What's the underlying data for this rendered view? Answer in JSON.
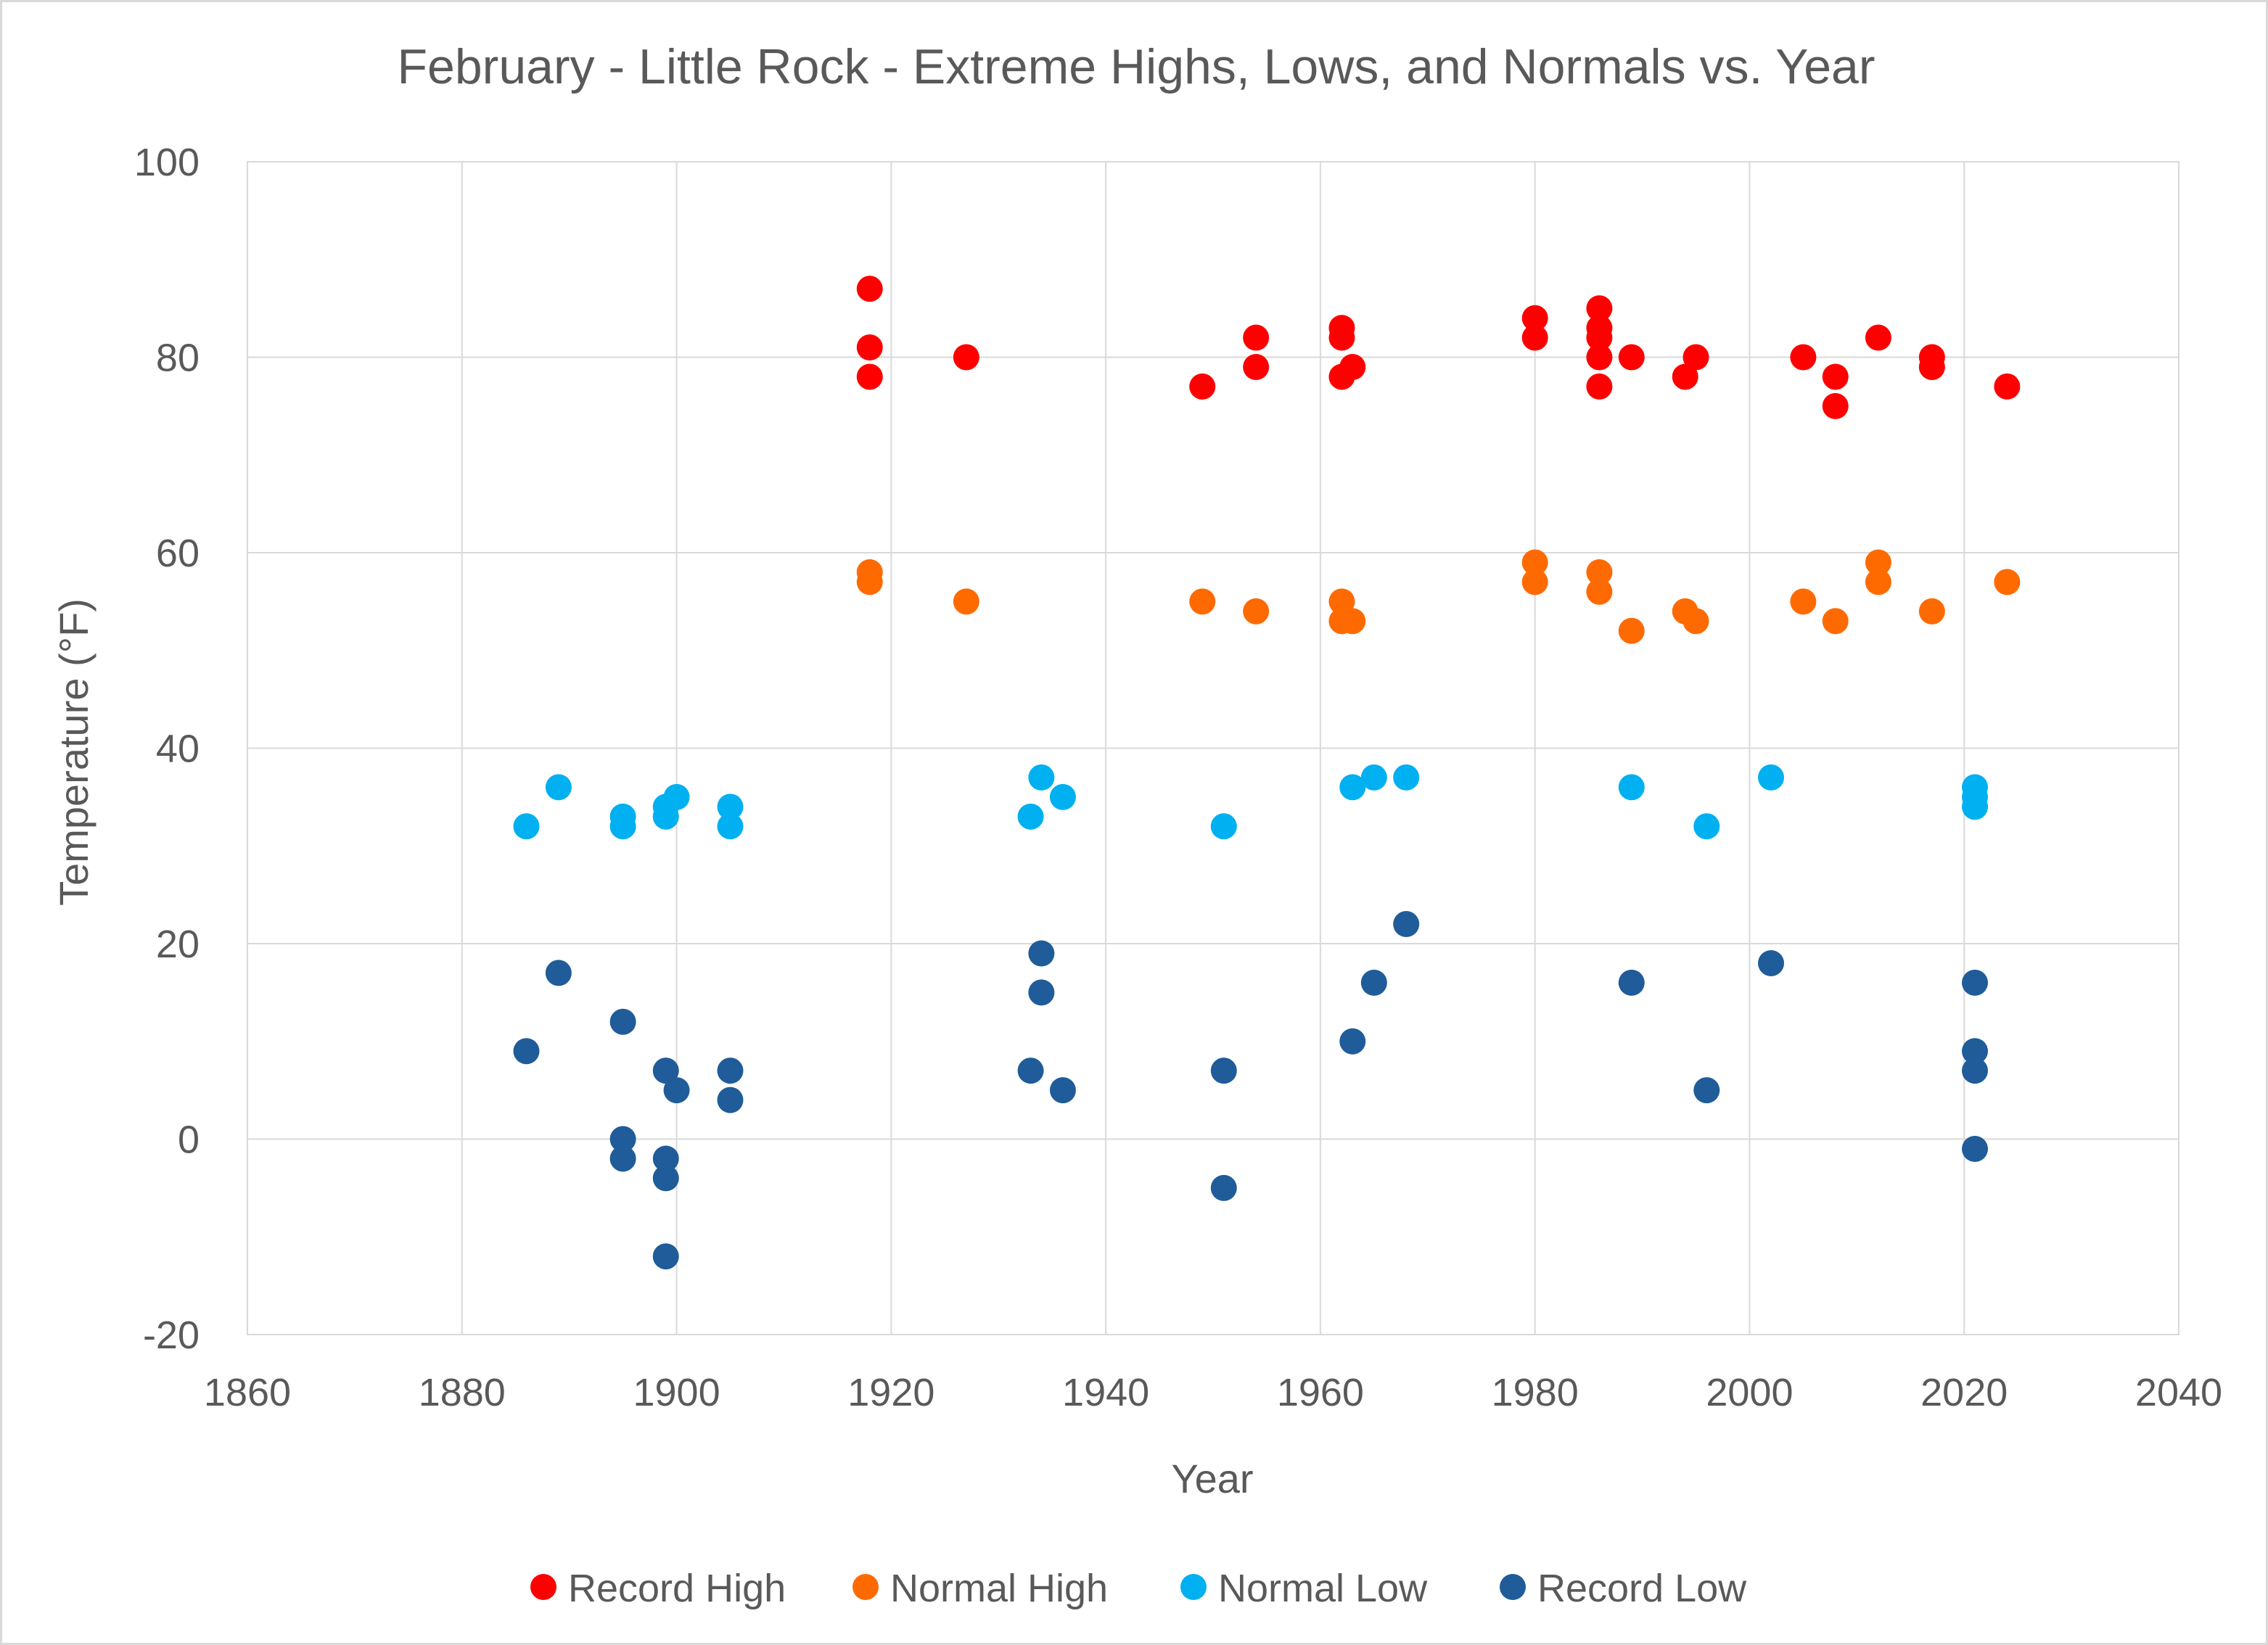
{
  "chart_data": {
    "type": "scatter",
    "title": "February - Little Rock - Extreme Highs, Lows, and Normals vs. Year",
    "xlabel": "Year",
    "ylabel": "Temperature (°F)",
    "xlim": [
      1860,
      2040
    ],
    "ylim": [
      -20,
      100
    ],
    "xticks": [
      1860,
      1880,
      1900,
      1920,
      1940,
      1960,
      1980,
      2000,
      2020,
      2040
    ],
    "yticks": [
      -20,
      0,
      20,
      40,
      60,
      80,
      100
    ],
    "grid": true,
    "legend_position": "bottom",
    "series": [
      {
        "name": "Record High",
        "color": "#ff0000",
        "points": [
          [
            1918,
            87
          ],
          [
            1918,
            81
          ],
          [
            1918,
            78
          ],
          [
            1927,
            80
          ],
          [
            1949,
            77
          ],
          [
            1954,
            82
          ],
          [
            1954,
            79
          ],
          [
            1962,
            83
          ],
          [
            1962,
            82
          ],
          [
            1962,
            78
          ],
          [
            1963,
            79
          ],
          [
            1980,
            84
          ],
          [
            1980,
            82
          ],
          [
            1986,
            85
          ],
          [
            1986,
            83
          ],
          [
            1986,
            82
          ],
          [
            1986,
            80
          ],
          [
            1986,
            77
          ],
          [
            1989,
            80
          ],
          [
            1994,
            78
          ],
          [
            1995,
            80
          ],
          [
            2005,
            80
          ],
          [
            2008,
            78
          ],
          [
            2008,
            75
          ],
          [
            2012,
            82
          ],
          [
            2017,
            80
          ],
          [
            2017,
            79
          ],
          [
            2024,
            77
          ]
        ]
      },
      {
        "name": "Normal High",
        "color": "#ff6a00",
        "points": [
          [
            1918,
            58
          ],
          [
            1918,
            57
          ],
          [
            1927,
            55
          ],
          [
            1949,
            55
          ],
          [
            1954,
            54
          ],
          [
            1962,
            55
          ],
          [
            1962,
            53
          ],
          [
            1963,
            53
          ],
          [
            1980,
            59
          ],
          [
            1980,
            57
          ],
          [
            1986,
            58
          ],
          [
            1986,
            56
          ],
          [
            1989,
            52
          ],
          [
            1994,
            54
          ],
          [
            1995,
            53
          ],
          [
            2005,
            55
          ],
          [
            2008,
            53
          ],
          [
            2012,
            59
          ],
          [
            2012,
            57
          ],
          [
            2017,
            54
          ],
          [
            2024,
            57
          ]
        ]
      },
      {
        "name": "Normal Low",
        "color": "#00b0f0",
        "points": [
          [
            1886,
            32
          ],
          [
            1889,
            36
          ],
          [
            1895,
            33
          ],
          [
            1895,
            32
          ],
          [
            1899,
            34
          ],
          [
            1899,
            33
          ],
          [
            1900,
            35
          ],
          [
            1905,
            34
          ],
          [
            1905,
            32
          ],
          [
            1933,
            33
          ],
          [
            1934,
            37
          ],
          [
            1936,
            35
          ],
          [
            1951,
            32
          ],
          [
            1963,
            36
          ],
          [
            1965,
            37
          ],
          [
            1968,
            37
          ],
          [
            1989,
            36
          ],
          [
            1996,
            32
          ],
          [
            2002,
            37
          ],
          [
            2021,
            36
          ],
          [
            2021,
            35
          ],
          [
            2021,
            34
          ]
        ]
      },
      {
        "name": "Record Low",
        "color": "#1f5c99",
        "points": [
          [
            1886,
            9
          ],
          [
            1889,
            17
          ],
          [
            1895,
            12
          ],
          [
            1895,
            0
          ],
          [
            1895,
            -2
          ],
          [
            1899,
            7
          ],
          [
            1899,
            -2
          ],
          [
            1899,
            -4
          ],
          [
            1899,
            -12
          ],
          [
            1900,
            5
          ],
          [
            1905,
            7
          ],
          [
            1905,
            4
          ],
          [
            1933,
            7
          ],
          [
            1934,
            19
          ],
          [
            1934,
            15
          ],
          [
            1936,
            5
          ],
          [
            1951,
            7
          ],
          [
            1951,
            -5
          ],
          [
            1963,
            10
          ],
          [
            1965,
            16
          ],
          [
            1968,
            22
          ],
          [
            1989,
            16
          ],
          [
            1996,
            5
          ],
          [
            2002,
            18
          ],
          [
            2021,
            16
          ],
          [
            2021,
            9
          ],
          [
            2021,
            7
          ],
          [
            2021,
            -1
          ]
        ]
      }
    ]
  }
}
